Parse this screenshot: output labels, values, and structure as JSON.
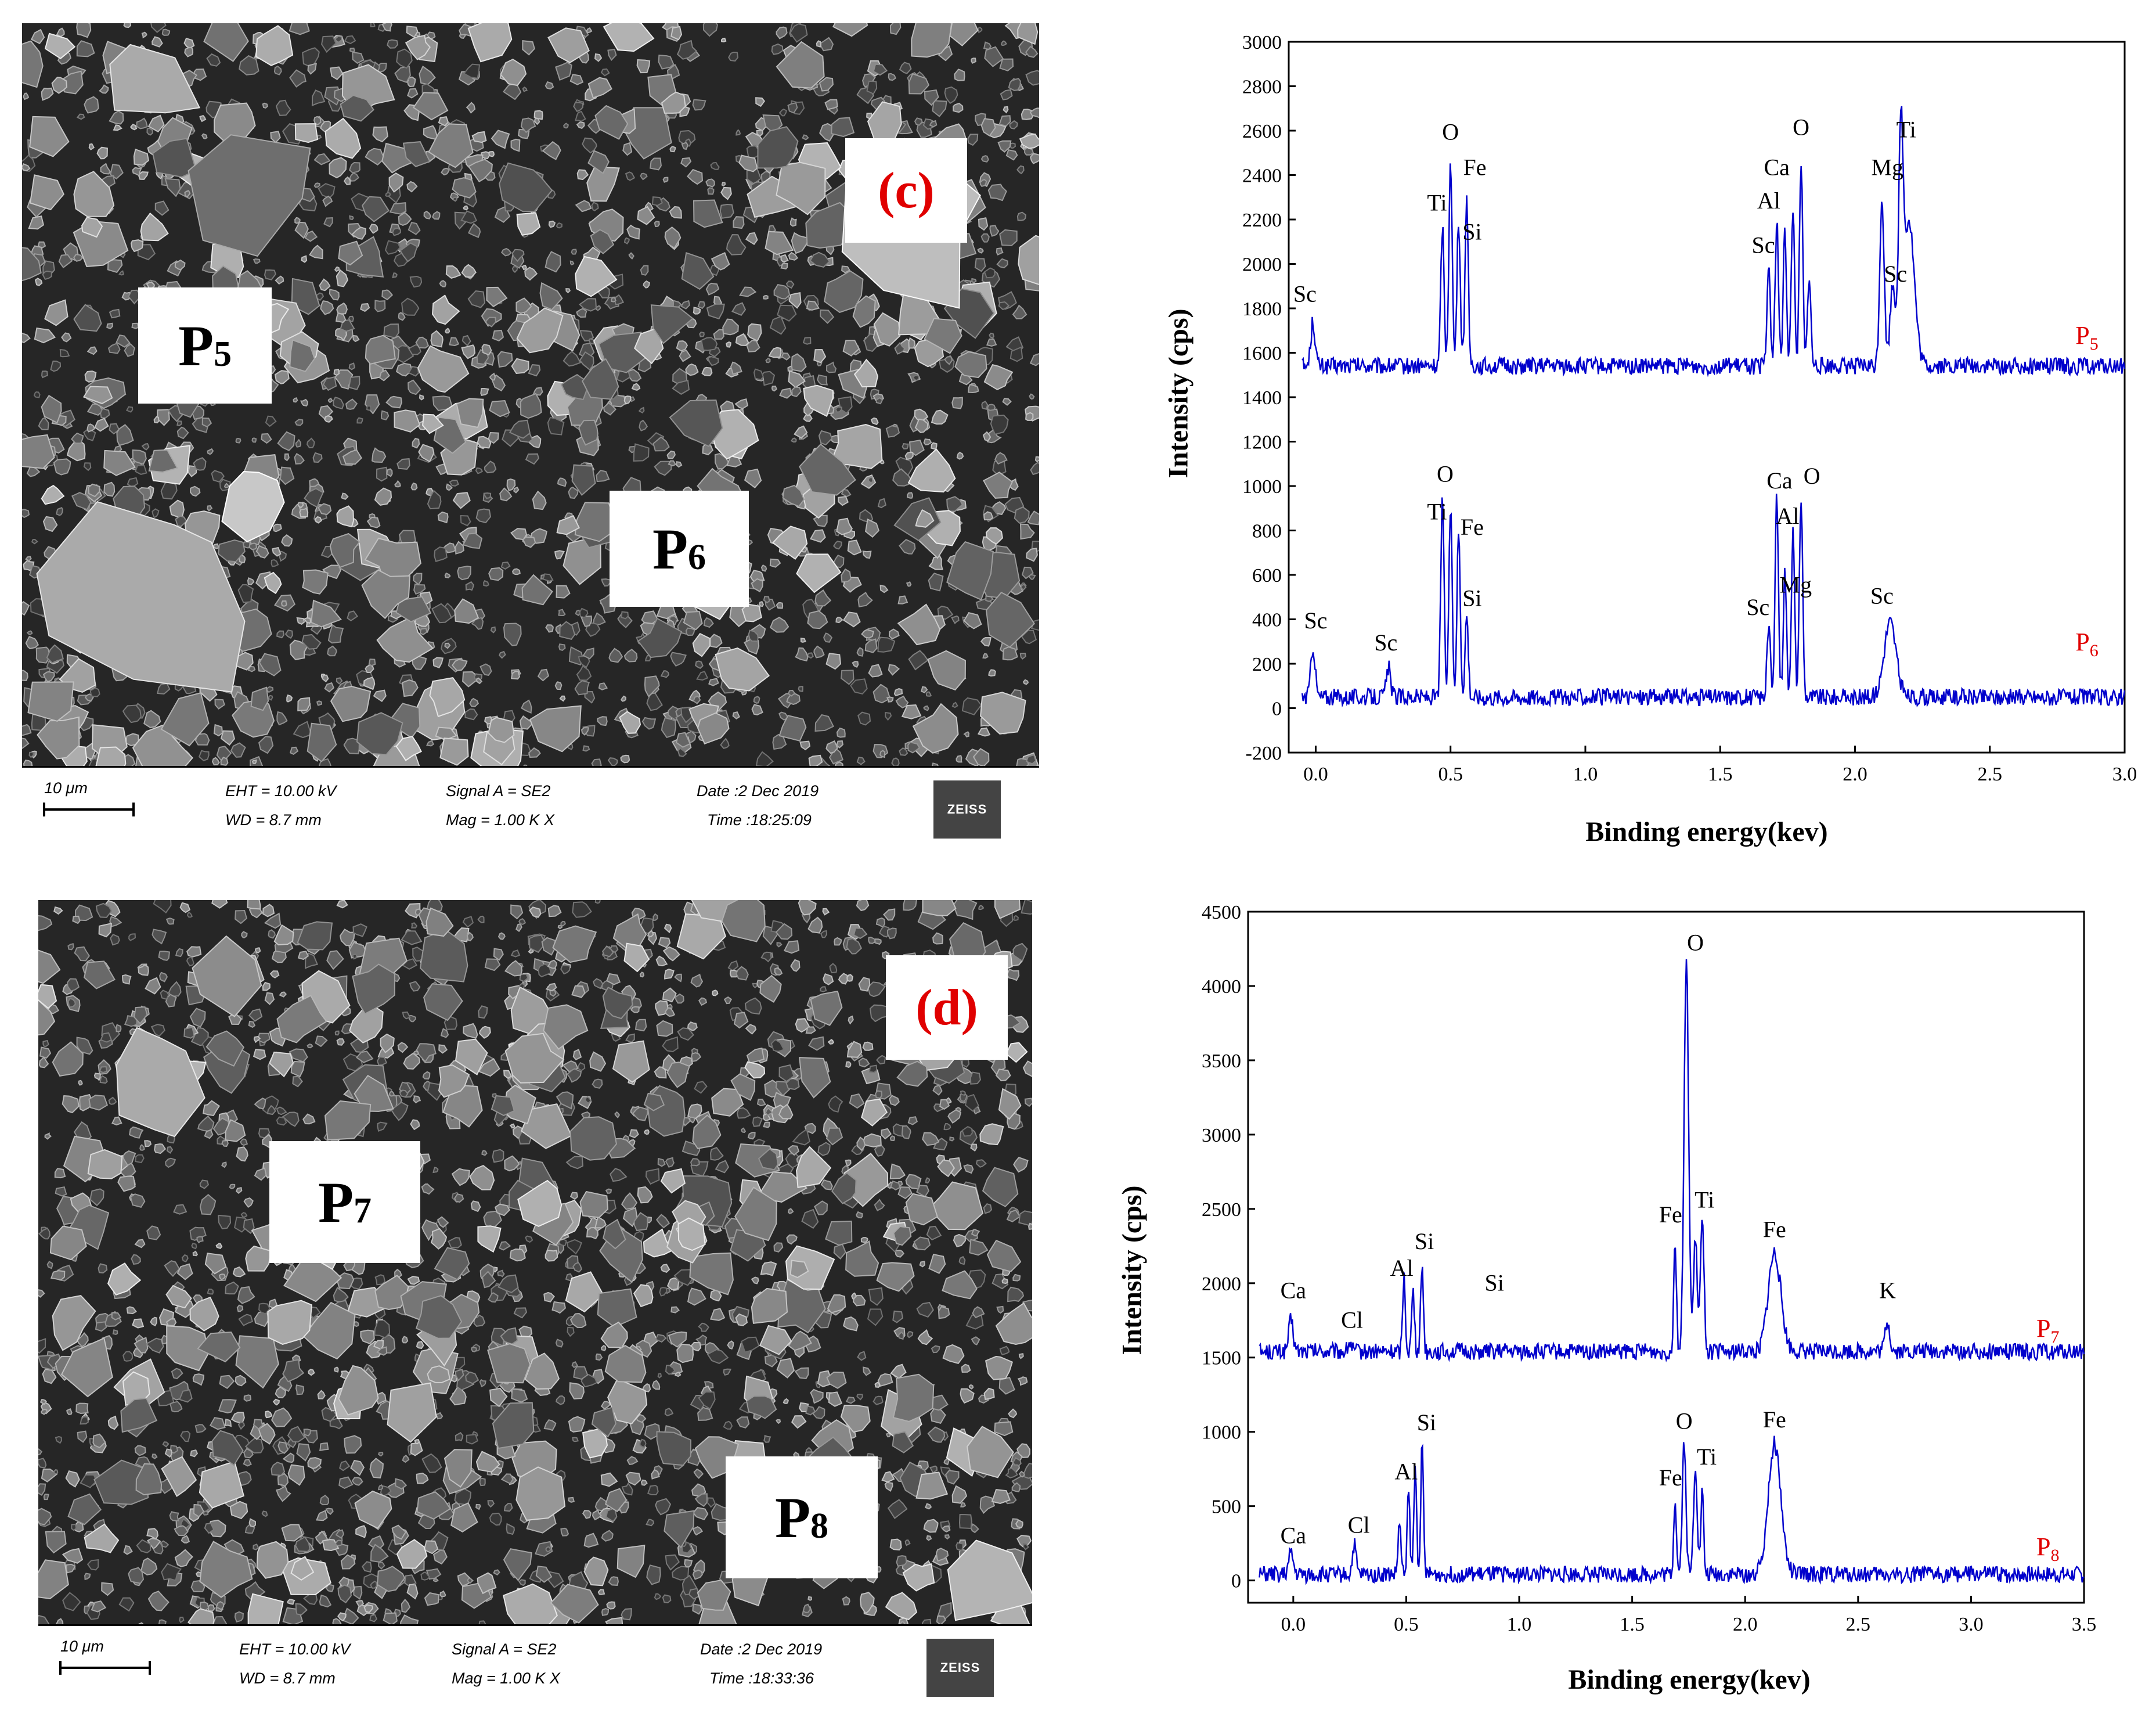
{
  "panels": [
    {
      "id": "c",
      "letter": "(c)",
      "sem": {
        "labels": [
          {
            "text": "P",
            "sub": "5"
          },
          {
            "text": "P",
            "sub": "6"
          }
        ],
        "info": {
          "scale": "10 μm",
          "eht": "EHT = 10.00 kV",
          "wd": "WD =  8.7 mm",
          "signal": "Signal A = SE2",
          "mag": "Mag =     1.00 K X",
          "date": "Date :2 Dec 2019",
          "time": "Time :18:25:09",
          "logo": "ZEISS"
        }
      }
    },
    {
      "id": "d",
      "letter": "(d)",
      "sem": {
        "labels": [
          {
            "text": "P",
            "sub": "7"
          },
          {
            "text": "P",
            "sub": "8"
          }
        ],
        "info": {
          "scale": "10 μm",
          "eht": "EHT = 10.00 kV",
          "wd": "WD =  8.7 mm",
          "signal": "Signal A = SE2",
          "mag": "Mag =     1.00 K X",
          "date": "Date :2 Dec 2019",
          "time": "Time :18:33:36",
          "logo": "ZEISS"
        }
      }
    }
  ],
  "chart_data": [
    {
      "type": "line",
      "xlabel": "Binding energy(kev)",
      "ylabel": "Intensity (cps)",
      "xlim": [
        -0.1,
        3.0
      ],
      "ylim": [
        -200,
        3000
      ],
      "xticks": [
        0.0,
        0.5,
        1.0,
        1.5,
        2.0,
        2.5,
        3.0
      ],
      "xtick_labels": [
        "0.0",
        "0.5",
        "1.0",
        "1.5",
        "2.0",
        "2.5",
        "3.0"
      ],
      "yticks": [
        -200,
        0,
        200,
        400,
        600,
        800,
        1000,
        1200,
        1400,
        1600,
        1800,
        2000,
        2200,
        2400,
        2600,
        2800,
        3000
      ],
      "ytick_labels": [
        "-200",
        "0",
        "200",
        "400",
        "600",
        "800",
        "1000",
        "1200",
        "1400",
        "1600",
        "1800",
        "2000",
        "2200",
        "2400",
        "2600",
        "2800",
        "3000"
      ],
      "color": "#0000cc",
      "series": [
        {
          "name": "P5",
          "baseline": 1540,
          "peaks": [
            {
              "x": -0.01,
              "y": 1740,
              "w": 0.008
            },
            {
              "x": 0.47,
              "y": 2170,
              "w": 0.006
            },
            {
              "x": 0.5,
              "y": 2480,
              "w": 0.006
            },
            {
              "x": 0.53,
              "y": 2200,
              "w": 0.006
            },
            {
              "x": 0.56,
              "y": 2300,
              "w": 0.006
            },
            {
              "x": 1.68,
              "y": 2000,
              "w": 0.006
            },
            {
              "x": 1.71,
              "y": 2200,
              "w": 0.006
            },
            {
              "x": 1.74,
              "y": 2150,
              "w": 0.006
            },
            {
              "x": 1.77,
              "y": 2250,
              "w": 0.006
            },
            {
              "x": 1.8,
              "y": 2480,
              "w": 0.006
            },
            {
              "x": 1.83,
              "y": 1950,
              "w": 0.006
            },
            {
              "x": 2.1,
              "y": 2300,
              "w": 0.008
            },
            {
              "x": 2.14,
              "y": 1900,
              "w": 0.01
            },
            {
              "x": 2.17,
              "y": 2480,
              "w": 0.008
            },
            {
              "x": 2.2,
              "y": 2200,
              "w": 0.02
            }
          ],
          "labels": [
            {
              "text": "Sc",
              "x": -0.04,
              "y": 1830
            },
            {
              "text": "Ti",
              "x": 0.45,
              "y": 2240
            },
            {
              "text": "O",
              "x": 0.5,
              "y": 2560
            },
            {
              "text": "Fe",
              "x": 0.59,
              "y": 2400
            },
            {
              "text": "Si",
              "x": 0.58,
              "y": 2110
            },
            {
              "text": "Ca",
              "x": 1.71,
              "y": 2400
            },
            {
              "text": "Al",
              "x": 1.68,
              "y": 2250
            },
            {
              "text": "Sc",
              "x": 1.66,
              "y": 2050
            },
            {
              "text": "O",
              "x": 1.8,
              "y": 2580
            },
            {
              "text": "Mg",
              "x": 2.12,
              "y": 2400
            },
            {
              "text": "Ti",
              "x": 2.19,
              "y": 2570
            },
            {
              "text": "Sc",
              "x": 2.15,
              "y": 1920
            }
          ],
          "tag": {
            "text": "P",
            "sub": "5",
            "x": 2.86,
            "y": 1640
          }
        },
        {
          "name": "P6",
          "baseline": 50,
          "peaks": [
            {
              "x": -0.01,
              "y": 280,
              "w": 0.008
            },
            {
              "x": 0.27,
              "y": 180,
              "w": 0.008
            },
            {
              "x": 0.47,
              "y": 950,
              "w": 0.006
            },
            {
              "x": 0.5,
              "y": 900,
              "w": 0.006
            },
            {
              "x": 0.53,
              "y": 800,
              "w": 0.006
            },
            {
              "x": 0.56,
              "y": 420,
              "w": 0.006
            },
            {
              "x": 1.68,
              "y": 380,
              "w": 0.006
            },
            {
              "x": 1.71,
              "y": 950,
              "w": 0.006
            },
            {
              "x": 1.74,
              "y": 620,
              "w": 0.006
            },
            {
              "x": 1.77,
              "y": 800,
              "w": 0.006
            },
            {
              "x": 1.8,
              "y": 950,
              "w": 0.006
            },
            {
              "x": 2.13,
              "y": 390,
              "w": 0.022
            }
          ],
          "labels": [
            {
              "text": "Sc",
              "x": 0.0,
              "y": 360
            },
            {
              "text": "Sc",
              "x": 0.26,
              "y": 260
            },
            {
              "text": "O",
              "x": 0.48,
              "y": 1020
            },
            {
              "text": "Ti",
              "x": 0.45,
              "y": 850
            },
            {
              "text": "Fe",
              "x": 0.58,
              "y": 780
            },
            {
              "text": "Si",
              "x": 0.58,
              "y": 460
            },
            {
              "text": "Ca",
              "x": 1.72,
              "y": 990
            },
            {
              "text": "O",
              "x": 1.84,
              "y": 1010
            },
            {
              "text": "Al",
              "x": 1.75,
              "y": 830
            },
            {
              "text": "Sc",
              "x": 1.64,
              "y": 420
            },
            {
              "text": "Mg",
              "x": 1.78,
              "y": 520
            },
            {
              "text": "Sc",
              "x": 2.1,
              "y": 470
            }
          ],
          "tag": {
            "text": "P",
            "sub": "6",
            "x": 2.86,
            "y": 260
          }
        }
      ]
    },
    {
      "type": "line",
      "xlabel": "Binding energy(kev)",
      "ylabel": "Intensity (cps)",
      "xlim": [
        -0.2,
        3.5
      ],
      "ylim": [
        -150,
        4500
      ],
      "xticks": [
        0.0,
        0.5,
        1.0,
        1.5,
        2.0,
        2.5,
        3.0,
        3.5
      ],
      "xtick_labels": [
        "0.0",
        "0.5",
        "1.0",
        "1.5",
        "2.0",
        "2.5",
        "3.0",
        "3.5"
      ],
      "yticks": [
        0,
        500,
        1000,
        1500,
        2000,
        2500,
        3000,
        3500,
        4000,
        4500
      ],
      "ytick_labels": [
        "0",
        "500",
        "1000",
        "1500",
        "2000",
        "2500",
        "3000",
        "3500",
        "4000",
        "4500"
      ],
      "color": "#0000cc",
      "series": [
        {
          "name": "P7",
          "baseline": 1540,
          "peaks": [
            {
              "x": -0.01,
              "y": 1750,
              "w": 0.01
            },
            {
              "x": 0.25,
              "y": 1600,
              "w": 0.008
            },
            {
              "x": 0.49,
              "y": 2050,
              "w": 0.006
            },
            {
              "x": 0.53,
              "y": 1950,
              "w": 0.006
            },
            {
              "x": 0.57,
              "y": 2130,
              "w": 0.006
            },
            {
              "x": 1.69,
              "y": 2300,
              "w": 0.006
            },
            {
              "x": 1.74,
              "y": 4150,
              "w": 0.01
            },
            {
              "x": 1.78,
              "y": 2300,
              "w": 0.008
            },
            {
              "x": 1.81,
              "y": 2400,
              "w": 0.008
            },
            {
              "x": 2.13,
              "y": 2200,
              "w": 0.028
            },
            {
              "x": 2.63,
              "y": 1750,
              "w": 0.01
            }
          ],
          "labels": [
            {
              "text": "Ca",
              "x": 0.0,
              "y": 1900
            },
            {
              "text": "Cl",
              "x": 0.26,
              "y": 1700
            },
            {
              "text": "Al",
              "x": 0.48,
              "y": 2050
            },
            {
              "text": "Si",
              "x": 0.58,
              "y": 2230
            },
            {
              "text": "Si",
              "x": 0.89,
              "y": 1950
            },
            {
              "text": "Fe",
              "x": 1.67,
              "y": 2410
            },
            {
              "text": "O",
              "x": 1.78,
              "y": 4240
            },
            {
              "text": "Ti",
              "x": 1.82,
              "y": 2510
            },
            {
              "text": "Fe",
              "x": 2.13,
              "y": 2310
            },
            {
              "text": "K",
              "x": 2.63,
              "y": 1900
            }
          ],
          "tag": {
            "text": "P",
            "sub": "7",
            "x": 3.34,
            "y": 1640
          }
        },
        {
          "name": "P8",
          "baseline": 40,
          "peaks": [
            {
              "x": -0.01,
              "y": 180,
              "w": 0.01
            },
            {
              "x": 0.27,
              "y": 240,
              "w": 0.008
            },
            {
              "x": 0.47,
              "y": 400,
              "w": 0.006
            },
            {
              "x": 0.51,
              "y": 600,
              "w": 0.006
            },
            {
              "x": 0.54,
              "y": 750,
              "w": 0.006
            },
            {
              "x": 0.57,
              "y": 900,
              "w": 0.006
            },
            {
              "x": 1.69,
              "y": 560,
              "w": 0.006
            },
            {
              "x": 1.73,
              "y": 940,
              "w": 0.008
            },
            {
              "x": 1.78,
              "y": 780,
              "w": 0.008
            },
            {
              "x": 1.81,
              "y": 600,
              "w": 0.006
            },
            {
              "x": 2.13,
              "y": 920,
              "w": 0.028
            }
          ],
          "labels": [
            {
              "text": "Ca",
              "x": 0.0,
              "y": 250
            },
            {
              "text": "Cl",
              "x": 0.29,
              "y": 320
            },
            {
              "text": "Al",
              "x": 0.5,
              "y": 680
            },
            {
              "text": "Si",
              "x": 0.59,
              "y": 1010
            },
            {
              "text": "Fe",
              "x": 1.67,
              "y": 640
            },
            {
              "text": "O",
              "x": 1.73,
              "y": 1020
            },
            {
              "text": "Ti",
              "x": 1.83,
              "y": 780
            },
            {
              "text": "Fe",
              "x": 2.13,
              "y": 1030
            }
          ],
          "tag": {
            "text": "P",
            "sub": "8",
            "x": 3.34,
            "y": 170
          }
        }
      ]
    }
  ]
}
